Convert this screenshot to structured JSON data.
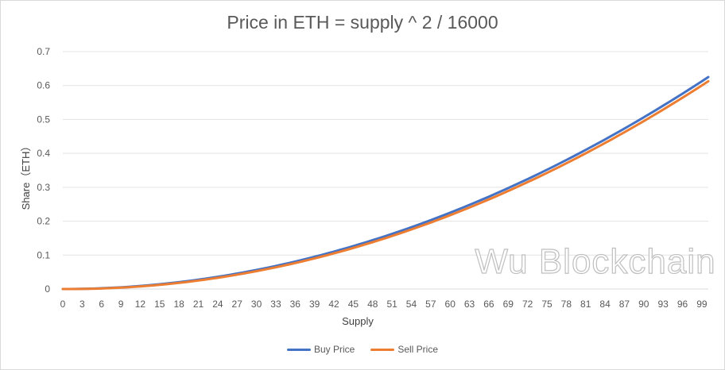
{
  "chart_data": {
    "type": "line",
    "title": "Price in ETH = supply ^ 2 / 16000",
    "xlabel": "Supply",
    "ylabel": "Share（ETH）",
    "x": [
      0,
      1,
      2,
      3,
      4,
      5,
      6,
      7,
      8,
      9,
      10,
      11,
      12,
      13,
      14,
      15,
      16,
      17,
      18,
      19,
      20,
      21,
      22,
      23,
      24,
      25,
      26,
      27,
      28,
      29,
      30,
      31,
      32,
      33,
      34,
      35,
      36,
      37,
      38,
      39,
      40,
      41,
      42,
      43,
      44,
      45,
      46,
      47,
      48,
      49,
      50,
      51,
      52,
      53,
      54,
      55,
      56,
      57,
      58,
      59,
      60,
      61,
      62,
      63,
      64,
      65,
      66,
      67,
      68,
      69,
      70,
      71,
      72,
      73,
      74,
      75,
      76,
      77,
      78,
      79,
      80,
      81,
      82,
      83,
      84,
      85,
      86,
      87,
      88,
      89,
      90,
      91,
      92,
      93,
      94,
      95,
      96,
      97,
      98,
      99,
      100
    ],
    "x_tick_labels": [
      "0",
      "3",
      "6",
      "9",
      "12",
      "15",
      "18",
      "21",
      "24",
      "27",
      "30",
      "33",
      "36",
      "39",
      "42",
      "45",
      "48",
      "51",
      "54",
      "57",
      "60",
      "63",
      "66",
      "69",
      "72",
      "75",
      "78",
      "81",
      "84",
      "87",
      "90",
      "93",
      "96",
      "99"
    ],
    "y_ticks": [
      "0",
      "0.1",
      "0.2",
      "0.3",
      "0.4",
      "0.5",
      "0.6",
      "0.7"
    ],
    "ylim": [
      0,
      0.7
    ],
    "grid": true,
    "legend_position": "bottom",
    "series": [
      {
        "name": "Buy Price",
        "color": "#4472c4",
        "values": [
          0,
          0.0001,
          0.0002,
          0.0005,
          0.001,
          0.0016,
          0.0023,
          0.0031,
          0.004,
          0.0051,
          0.0063,
          0.0076,
          0.009,
          0.0106,
          0.0123,
          0.0141,
          0.016,
          0.0181,
          0.0203,
          0.0226,
          0.025,
          0.0276,
          0.0303,
          0.0331,
          0.036,
          0.0391,
          0.0423,
          0.0456,
          0.049,
          0.0526,
          0.0563,
          0.0601,
          0.064,
          0.0681,
          0.0723,
          0.0766,
          0.081,
          0.0856,
          0.0903,
          0.0951,
          0.1,
          0.1051,
          0.1103,
          0.1156,
          0.121,
          0.1266,
          0.1323,
          0.1381,
          0.144,
          0.1501,
          0.1563,
          0.1626,
          0.169,
          0.1756,
          0.1823,
          0.1891,
          0.196,
          0.2031,
          0.2103,
          0.2176,
          0.225,
          0.2326,
          0.2403,
          0.2481,
          0.256,
          0.2641,
          0.2723,
          0.2806,
          0.289,
          0.2976,
          0.3063,
          0.3151,
          0.324,
          0.3331,
          0.3423,
          0.3516,
          0.361,
          0.3706,
          0.3803,
          0.3901,
          0.4,
          0.4101,
          0.4203,
          0.4306,
          0.441,
          0.4516,
          0.4623,
          0.4731,
          0.484,
          0.4951,
          0.5063,
          0.5176,
          0.529,
          0.5406,
          0.5523,
          0.5641,
          0.576,
          0.5881,
          0.6003,
          0.6126,
          0.625
        ]
      },
      {
        "name": "Sell Price",
        "color": "#ed7d31",
        "values": [
          0,
          0,
          0.0001,
          0.0003,
          0.0006,
          0.001,
          0.0016,
          0.0023,
          0.0031,
          0.004,
          0.0051,
          0.0063,
          0.0076,
          0.009,
          0.0106,
          0.0123,
          0.0141,
          0.016,
          0.0181,
          0.0203,
          0.0226,
          0.025,
          0.0276,
          0.0303,
          0.0331,
          0.036,
          0.0391,
          0.0423,
          0.0456,
          0.049,
          0.0526,
          0.0563,
          0.0601,
          0.064,
          0.0681,
          0.0723,
          0.0766,
          0.081,
          0.0856,
          0.0903,
          0.0951,
          0.1,
          0.1051,
          0.1103,
          0.1156,
          0.121,
          0.1266,
          0.1323,
          0.1381,
          0.144,
          0.1501,
          0.1563,
          0.1626,
          0.169,
          0.1756,
          0.1823,
          0.1891,
          0.196,
          0.2031,
          0.2103,
          0.2176,
          0.225,
          0.2326,
          0.2403,
          0.2481,
          0.256,
          0.2641,
          0.2723,
          0.2806,
          0.289,
          0.2976,
          0.3063,
          0.3151,
          0.324,
          0.3331,
          0.3423,
          0.3516,
          0.361,
          0.3706,
          0.3803,
          0.3901,
          0.4,
          0.4101,
          0.4203,
          0.4306,
          0.441,
          0.4516,
          0.4623,
          0.4731,
          0.484,
          0.4951,
          0.5063,
          0.5176,
          0.529,
          0.5406,
          0.5523,
          0.5641,
          0.576,
          0.5881,
          0.6003,
          0.6126
        ]
      }
    ],
    "watermark": "Wu Blockchain"
  }
}
